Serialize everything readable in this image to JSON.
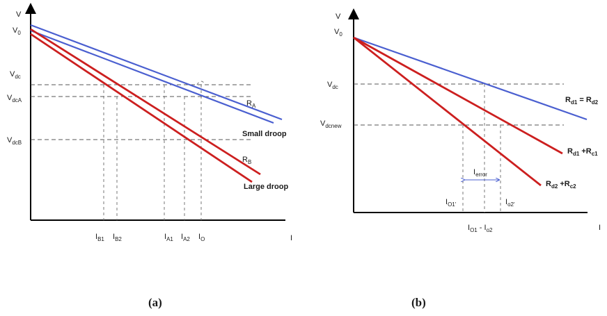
{
  "panel_a": {
    "axis_v": "V",
    "axis_i": "I",
    "v0": {
      "main": "V",
      "sub": "0"
    },
    "vdc": {
      "main": "V",
      "sub": "dc"
    },
    "vdca": {
      "main": "V",
      "sub": "dcA"
    },
    "vdcb": {
      "main": "V",
      "sub": "dcB"
    },
    "ib1": {
      "main": "I",
      "sub": "B1"
    },
    "ib2": {
      "main": "I",
      "sub": "B2"
    },
    "ia1": {
      "main": "I",
      "sub": "A1"
    },
    "ia2": {
      "main": "I",
      "sub": "A2"
    },
    "io": {
      "main": "I",
      "sub": "O"
    },
    "ra": {
      "main": "R",
      "sub": "A"
    },
    "rb": {
      "main": "R",
      "sub": "B"
    },
    "small_droop": "Small droop",
    "large_droop": "Large droop",
    "caption": "(a)",
    "colors": {
      "blue": "#4a5fd0",
      "red": "#cc1f1f"
    }
  },
  "panel_b": {
    "axis_v": "V",
    "axis_i": "I",
    "v0": {
      "main": "V",
      "sub": "0"
    },
    "vdc": {
      "main": "V",
      "sub": "dc"
    },
    "vdcnew": {
      "main": "V",
      "sub": "dcnew"
    },
    "io1": {
      "main": "I",
      "sub": "O1'"
    },
    "io2": {
      "main": "I",
      "sub": "o2'"
    },
    "iol": {
      "main": "I",
      "sub": "O1"
    },
    "ior": {
      "main": "I",
      "sub": "o2"
    },
    "iminus": "-",
    "ierror": {
      "main": "I",
      "sub": "error"
    },
    "rd1": {
      "main": "R",
      "sub": "d1"
    },
    "rd2": {
      "main": "R",
      "sub": "d2"
    },
    "rc1": {
      "main": "R",
      "sub": "c1"
    },
    "rc2": {
      "main": "R",
      "sub": "c2"
    },
    "eq": " = ",
    "plus": " +",
    "caption": "(b)",
    "colors": {
      "blue": "#4a5fd0",
      "red": "#cc1f1f"
    }
  }
}
